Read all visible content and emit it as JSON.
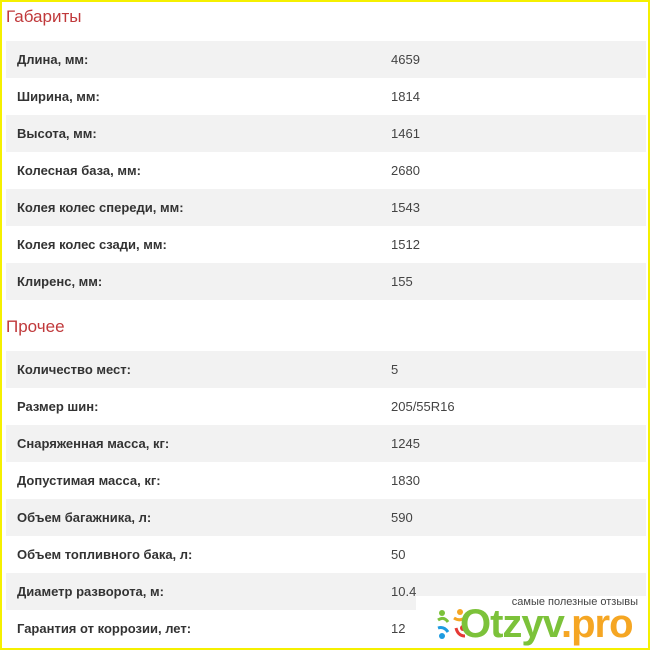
{
  "sections": [
    {
      "title": "Габариты",
      "rows": [
        {
          "label": "Длина, мм:",
          "value": "4659"
        },
        {
          "label": "Ширина, мм:",
          "value": "1814"
        },
        {
          "label": "Высота, мм:",
          "value": "1461"
        },
        {
          "label": "Колесная база, мм:",
          "value": "2680"
        },
        {
          "label": "Колея колес спереди, мм:",
          "value": "1543"
        },
        {
          "label": "Колея колес сзади, мм:",
          "value": "1512"
        },
        {
          "label": "Клиренс, мм:",
          "value": "155"
        }
      ]
    },
    {
      "title": "Прочее",
      "rows": [
        {
          "label": "Количество мест:",
          "value": "5"
        },
        {
          "label": "Размер шин:",
          "value": "205/55R16"
        },
        {
          "label": "Снаряженная масса, кг:",
          "value": "1245"
        },
        {
          "label": "Допустимая масса, кг:",
          "value": "1830"
        },
        {
          "label": "Объем багажника, л:",
          "value": "590"
        },
        {
          "label": "Объем топливного бака, л:",
          "value": "50"
        },
        {
          "label": "Диаметр разворота, м:",
          "value": "10.4"
        },
        {
          "label": "Гарантия от коррозии, лет:",
          "value": "12"
        }
      ]
    }
  ],
  "watermark": {
    "tagline": "самые полезные отзывы",
    "brand_main": "Otzyv",
    "brand_suffix": ".pro"
  },
  "colors": {
    "section_title": "#c0393b",
    "row_alt": "#f2f2f2",
    "brand_green": "#7cc23a",
    "brand_orange": "#f5a623"
  }
}
